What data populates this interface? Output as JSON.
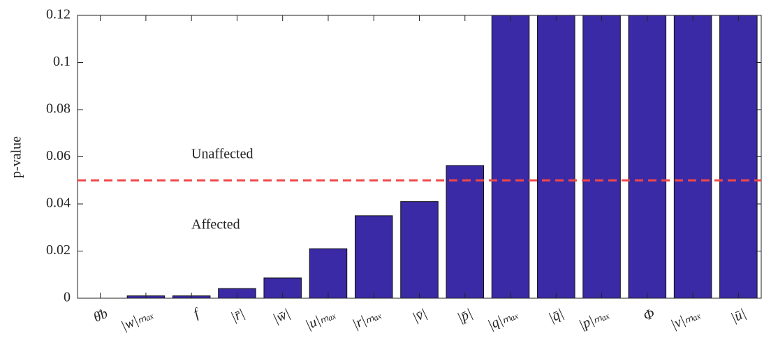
{
  "chart_data": {
    "type": "bar",
    "y_label": "p-value",
    "categories": [
      "θ̄b",
      "|w|ₘₐₓ",
      "f",
      "|r̄|",
      "|w̄|",
      "|u|ₘₐₓ",
      "|r|ₘₐₓ",
      "|v̄|",
      "|p̄|",
      "|q|ₘₐₓ",
      "|q̄|",
      "|p|ₘₐₓ",
      "Φ",
      "|v|ₘₐₓ",
      "|ū|"
    ],
    "values": [
      0,
      0.001,
      0.001,
      0.0041,
      0.0086,
      0.021,
      0.035,
      0.041,
      0.0563,
      0.12,
      0.12,
      0.12,
      0.12,
      0.12,
      0.12
    ],
    "color": "#3a2aa6",
    "ylim": [
      0,
      0.12
    ],
    "yticks": [
      0,
      0.02,
      0.04,
      0.06,
      0.08,
      0.1,
      0.12
    ],
    "threshold": 0.05,
    "threshold_color": "#f04848",
    "annotations": [
      "Unaffected",
      "Affected"
    ]
  }
}
